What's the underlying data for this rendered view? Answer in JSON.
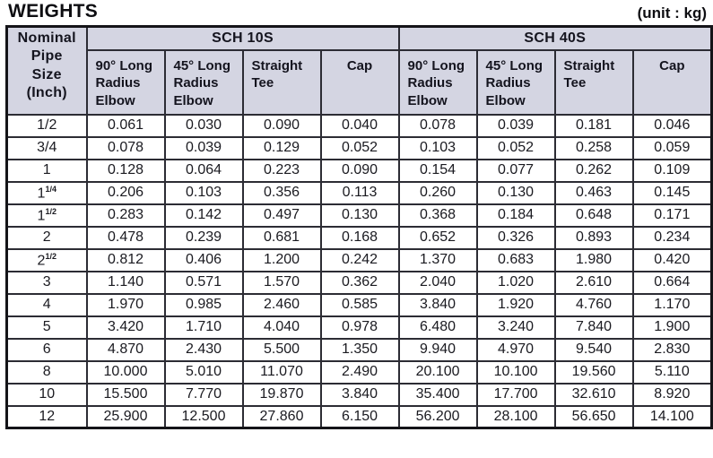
{
  "title": "WEIGHTS",
  "unit_label": "(unit : kg)",
  "colors": {
    "header_background": "#d4d5e2",
    "grid_border": "#2c2c34",
    "outer_border": "#141418",
    "text": "#14141e"
  },
  "table": {
    "corner_header": "Nominal\nPipe\nSize\n(Inch)",
    "groups": [
      {
        "label": "SCH 10S",
        "columns": [
          "90° Long\nRadius\nElbow",
          "45° Long\nRadius\nElbow",
          "Straight\nTee",
          "Cap"
        ]
      },
      {
        "label": "SCH 40S",
        "columns": [
          "90° Long\nRadius\nElbow",
          "45° Long\nRadius\nElbow",
          "Straight\nTee",
          "Cap"
        ]
      }
    ],
    "rows": [
      {
        "size_base": "1/2",
        "size_sup": "",
        "values": [
          "0.061",
          "0.030",
          "0.090",
          "0.040",
          "0.078",
          "0.039",
          "0.181",
          "0.046"
        ]
      },
      {
        "size_base": "3/4",
        "size_sup": "",
        "values": [
          "0.078",
          "0.039",
          "0.129",
          "0.052",
          "0.103",
          "0.052",
          "0.258",
          "0.059"
        ]
      },
      {
        "size_base": "1",
        "size_sup": "",
        "values": [
          "0.128",
          "0.064",
          "0.223",
          "0.090",
          "0.154",
          "0.077",
          "0.262",
          "0.109"
        ]
      },
      {
        "size_base": "1",
        "size_sup": "1/4",
        "values": [
          "0.206",
          "0.103",
          "0.356",
          "0.113",
          "0.260",
          "0.130",
          "0.463",
          "0.145"
        ]
      },
      {
        "size_base": "1",
        "size_sup": "1/2",
        "values": [
          "0.283",
          "0.142",
          "0.497",
          "0.130",
          "0.368",
          "0.184",
          "0.648",
          "0.171"
        ]
      },
      {
        "size_base": "2",
        "size_sup": "",
        "values": [
          "0.478",
          "0.239",
          "0.681",
          "0.168",
          "0.652",
          "0.326",
          "0.893",
          "0.234"
        ]
      },
      {
        "size_base": "2",
        "size_sup": "1/2",
        "values": [
          "0.812",
          "0.406",
          "1.200",
          "0.242",
          "1.370",
          "0.683",
          "1.980",
          "0.420"
        ]
      },
      {
        "size_base": "3",
        "size_sup": "",
        "values": [
          "1.140",
          "0.571",
          "1.570",
          "0.362",
          "2.040",
          "1.020",
          "2.610",
          "0.664"
        ]
      },
      {
        "size_base": "4",
        "size_sup": "",
        "values": [
          "1.970",
          "0.985",
          "2.460",
          "0.585",
          "3.840",
          "1.920",
          "4.760",
          "1.170"
        ]
      },
      {
        "size_base": "5",
        "size_sup": "",
        "values": [
          "3.420",
          "1.710",
          "4.040",
          "0.978",
          "6.480",
          "3.240",
          "7.840",
          "1.900"
        ]
      },
      {
        "size_base": "6",
        "size_sup": "",
        "values": [
          "4.870",
          "2.430",
          "5.500",
          "1.350",
          "9.940",
          "4.970",
          "9.540",
          "2.830"
        ]
      },
      {
        "size_base": "8",
        "size_sup": "",
        "values": [
          "10.000",
          "5.010",
          "11.070",
          "2.490",
          "20.100",
          "10.100",
          "19.560",
          "5.110"
        ]
      },
      {
        "size_base": "10",
        "size_sup": "",
        "values": [
          "15.500",
          "7.770",
          "19.870",
          "3.840",
          "35.400",
          "17.700",
          "32.610",
          "8.920"
        ]
      },
      {
        "size_base": "12",
        "size_sup": "",
        "values": [
          "25.900",
          "12.500",
          "27.860",
          "6.150",
          "56.200",
          "28.100",
          "56.650",
          "14.100"
        ]
      }
    ]
  }
}
